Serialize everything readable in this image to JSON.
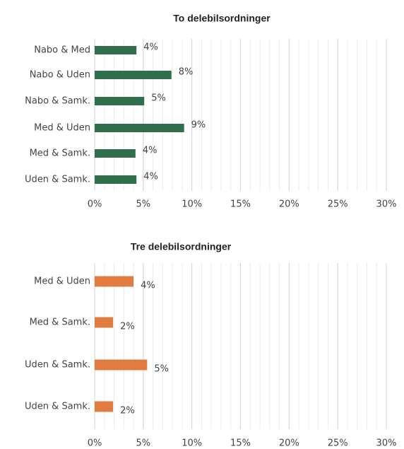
{
  "chart_data": [
    {
      "type": "barh",
      "title": "To delebilsordninger",
      "categories": [
        "Nabo & Med",
        "Nabo & Uden",
        "Nabo & Samk.",
        "Med & Uden",
        "Med & Samk.",
        "Uden & Samk."
      ],
      "values": [
        4.3,
        7.9,
        5.1,
        9.2,
        4.2,
        4.3
      ],
      "value_labels": [
        "4%",
        "8%",
        "5%",
        "9%",
        "4%",
        "4%"
      ],
      "color": "#2f6f4b",
      "xlim": [
        0,
        30
      ],
      "xticks": [
        {
          "value": 0,
          "label": "0%"
        },
        {
          "value": 5,
          "label": "5%"
        },
        {
          "value": 10,
          "label": "10%"
        },
        {
          "value": 15,
          "label": "15%"
        },
        {
          "value": 20,
          "label": "20%"
        },
        {
          "value": 25,
          "label": "25%"
        },
        {
          "value": 30,
          "label": "30%"
        }
      ],
      "grid": true,
      "minor_grid_step": 1
    },
    {
      "type": "barh",
      "title": "Tre delebilsordninger",
      "categories": [
        "Med & Uden",
        "Med & Samk.",
        "Uden & Samk.",
        "Uden & Samk."
      ],
      "values": [
        4.0,
        1.9,
        5.4,
        1.9
      ],
      "value_labels": [
        "4%",
        "2%",
        "5%",
        "2%"
      ],
      "color": "#e07c42",
      "xlim": [
        0,
        30
      ],
      "xticks": [
        {
          "value": 0,
          "label": "0%"
        },
        {
          "value": 5,
          "label": "5%"
        },
        {
          "value": 10,
          "label": "10%"
        },
        {
          "value": 15,
          "label": "15%"
        },
        {
          "value": 20,
          "label": "20%"
        },
        {
          "value": 25,
          "label": "25%"
        },
        {
          "value": 30,
          "label": "30%"
        }
      ],
      "grid": true,
      "minor_grid_step": 1
    }
  ]
}
